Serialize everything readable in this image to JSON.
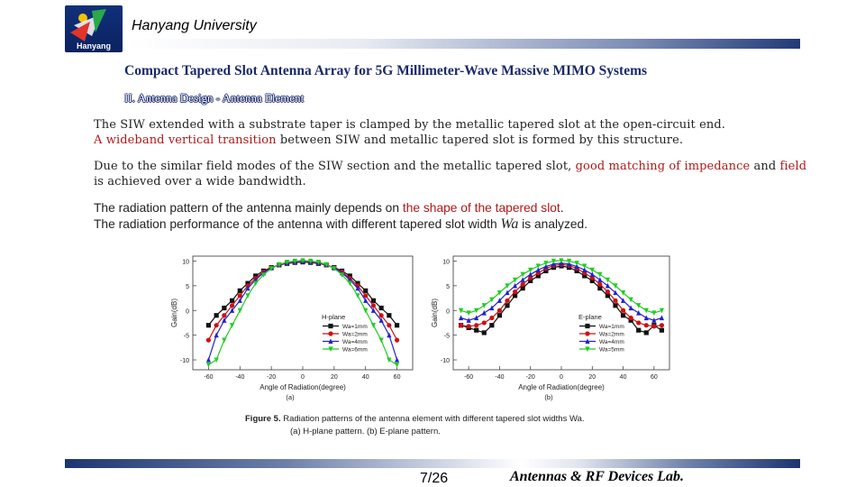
{
  "header": {
    "logo_text": "Hanyang",
    "university": "Hanyang University"
  },
  "title": "Compact Tapered Slot Antenna Array for 5G Millimeter-Wave Massive MIMO Systems",
  "subtitle": "II. Antenna Design - Antenna Element",
  "para1": {
    "line1": "The SIW extended with a substrate taper is clamped by the metallic tapered slot at the open-circuit end.",
    "line2_red": "A wideband vertical transition",
    "line2_rest": " between SIW and metallic tapered slot is formed by this structure."
  },
  "para2": {
    "line1_a": "Due to the similar field modes of the SIW section and the metallic tapered slot, ",
    "line1_red1": "good matching of impedance",
    "line1_b": " and ",
    "line1_red2": "field",
    "line2": "is achieved over a wide bandwidth."
  },
  "para3": {
    "line1_a": "The radiation pattern of the antenna mainly depends  on ",
    "line1_red": "the shape of the tapered slot",
    "line1_b": ".",
    "line2_a": "The radiation performance of the antenna with different  tapered slot width ",
    "line2_var": "Wa",
    "line2_b": "  is analyzed."
  },
  "figure": {
    "caption_bold": "Figure 5.",
    "caption_line1": " Radiation patterns of the antenna element with different tapered slot widths Wa.",
    "caption_line2": "(a) H-plane pattern. (b) E-plane pattern."
  },
  "chart_data": [
    {
      "type": "line",
      "sublabel": "(a)",
      "legend_title": "H-plane",
      "xlabel": "Angle of Radiation(degree)",
      "ylabel": "Gain(dB)",
      "xlim": [
        -70,
        70
      ],
      "ylim": [
        -12,
        11
      ],
      "xticks": [
        -60,
        -40,
        -20,
        0,
        20,
        40,
        60
      ],
      "yticks": [
        10,
        5,
        0,
        -5,
        -10
      ],
      "legend_placement": "bottom-right",
      "x": [
        -60,
        -55,
        -50,
        -45,
        -40,
        -35,
        -30,
        -25,
        -20,
        -15,
        -10,
        -5,
        0,
        5,
        10,
        15,
        20,
        25,
        30,
        35,
        40,
        45,
        50,
        55,
        60
      ],
      "series": [
        {
          "name": "Wa=1mm",
          "color": "#111111",
          "marker": "square",
          "values": [
            -3,
            -1,
            0.5,
            2,
            4,
            5.5,
            7,
            8,
            8.7,
            9.2,
            9.5,
            9.7,
            9.8,
            9.7,
            9.5,
            9.2,
            8.7,
            8,
            7,
            5.5,
            4,
            2,
            0.5,
            -1,
            -3
          ]
        },
        {
          "name": "Wa=2mm",
          "color": "#cc1111",
          "marker": "circle",
          "values": [
            -6,
            -3,
            -1,
            1,
            3,
            5,
            6.5,
            7.8,
            8.6,
            9.2,
            9.6,
            9.8,
            9.9,
            9.8,
            9.6,
            9.2,
            8.6,
            7.8,
            6.5,
            5,
            3,
            1,
            -1,
            -3,
            -6
          ]
        },
        {
          "name": "Wa=4mm",
          "color": "#2222cc",
          "marker": "triangle",
          "values": [
            -10,
            -5,
            -2,
            0,
            2,
            4.5,
            6.2,
            7.6,
            8.6,
            9.3,
            9.7,
            9.9,
            10,
            9.9,
            9.7,
            9.3,
            8.6,
            7.6,
            6.2,
            4.5,
            2,
            0,
            -2,
            -5,
            -10
          ]
        },
        {
          "name": "Wa=6mm",
          "color": "#22cc22",
          "marker": "tri-down",
          "values": [
            -11,
            -10,
            -6,
            -3,
            0,
            3,
            5.5,
            7.2,
            8.5,
            9.3,
            9.8,
            10,
            10.1,
            10,
            9.8,
            9.3,
            8.5,
            7.2,
            5.5,
            3,
            0,
            -3,
            -6,
            -10,
            -11
          ]
        }
      ]
    },
    {
      "type": "line",
      "sublabel": "(b)",
      "legend_title": "E-plane",
      "xlabel": "Angle of Radiation(degree)",
      "ylabel": "Gain(dB)",
      "xlim": [
        -70,
        70
      ],
      "ylim": [
        -12,
        11
      ],
      "xticks": [
        -60,
        -40,
        -20,
        0,
        20,
        40,
        60
      ],
      "yticks": [
        10,
        5,
        0,
        -5,
        -10
      ],
      "legend_placement": "bottom-right",
      "x": [
        -65,
        -60,
        -55,
        -50,
        -45,
        -40,
        -35,
        -30,
        -25,
        -20,
        -15,
        -10,
        -5,
        0,
        5,
        10,
        15,
        20,
        25,
        30,
        35,
        40,
        45,
        50,
        55,
        60,
        65
      ],
      "series": [
        {
          "name": "Wa=1mm",
          "color": "#111111",
          "marker": "square",
          "values": [
            -3,
            -3.5,
            -4,
            -4.5,
            -3,
            -1,
            1,
            3,
            4.5,
            6,
            7,
            8,
            8.7,
            9,
            8.7,
            8,
            7,
            6,
            4.5,
            3,
            1,
            -1,
            -2,
            -4,
            -4.5,
            -3,
            -4
          ]
        },
        {
          "name": "Wa=2mm",
          "color": "#cc1111",
          "marker": "circle",
          "values": [
            -3,
            -3.2,
            -3,
            -2.5,
            -1.5,
            0,
            2,
            3.8,
            5.3,
            6.6,
            7.6,
            8.5,
            9.1,
            9.3,
            9.1,
            8.5,
            7.6,
            6.6,
            5.3,
            3.8,
            2,
            0,
            -1.5,
            -2.5,
            -3,
            -3.2,
            -3
          ]
        },
        {
          "name": "Wa=4mm",
          "color": "#2222cc",
          "marker": "triangle",
          "values": [
            -1.5,
            -2,
            -1.5,
            -0.5,
            0.5,
            2,
            3.6,
            5,
            6.2,
            7.3,
            8.2,
            8.9,
            9.4,
            9.6,
            9.4,
            8.9,
            8.2,
            7.3,
            6.2,
            5,
            3.6,
            2,
            0.5,
            -0.5,
            -1.5,
            -2,
            -1.5
          ]
        },
        {
          "name": "Wa=5mm",
          "color": "#22cc22",
          "marker": "tri-down",
          "values": [
            0,
            -0.5,
            0,
            1,
            2.2,
            3.6,
            5,
            6.2,
            7.3,
            8.2,
            9,
            9.6,
            10,
            10.1,
            10,
            9.6,
            9,
            8.2,
            7.3,
            6.2,
            5,
            3.6,
            2.2,
            1,
            0,
            -0.5,
            0
          ]
        }
      ]
    }
  ],
  "footer": {
    "page": "7/26",
    "lab": "Antennas & RF Devices Lab."
  }
}
